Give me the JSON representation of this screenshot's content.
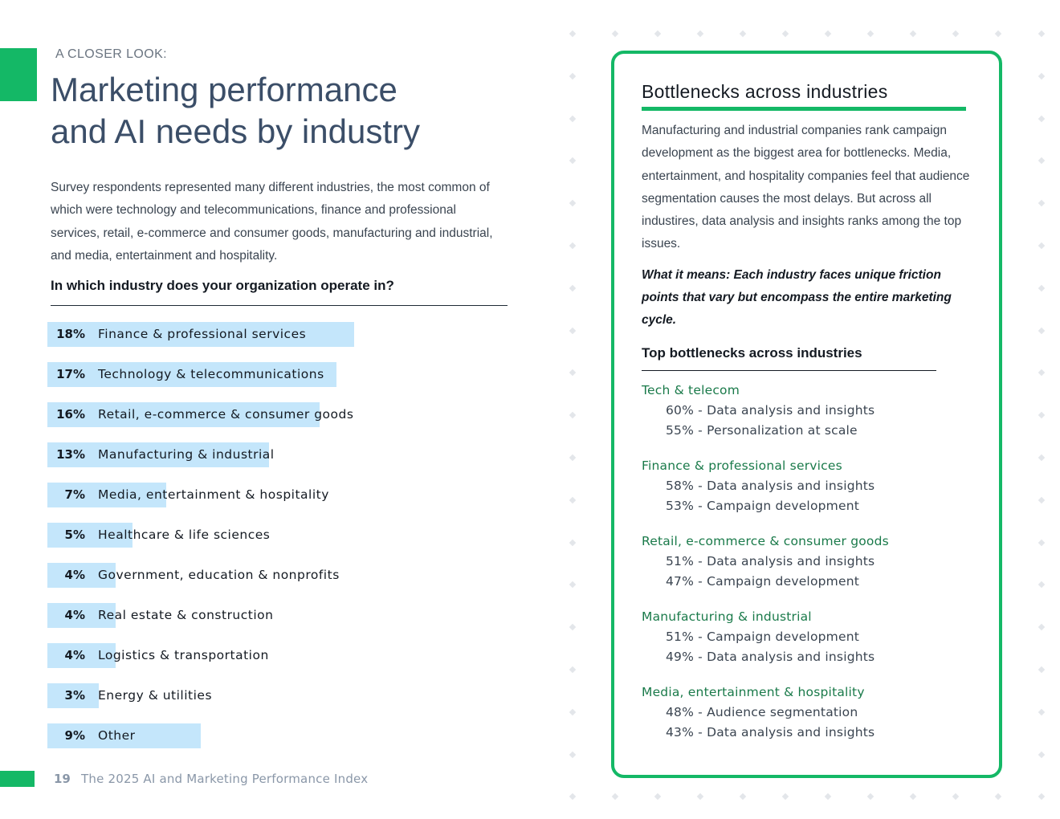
{
  "header": {
    "kicker": "A CLOSER LOOK:",
    "title_line1": "Marketing performance",
    "title_line2": "and AI needs by industry"
  },
  "intro": "Survey respondents represented many different industries, the most common of which were technology and telecommunications, finance and professional services, retail, e-commerce and consumer goods, manufacturing and industrial, and media, entertainment and hospitality.",
  "question": "In which industry does your organization operate in?",
  "chart_data": {
    "type": "bar",
    "title": "In which industry does your organization operate in?",
    "categories": [
      "Finance & professional services",
      "Technology & telecommunications",
      "Retail, e-commerce & consumer goods",
      "Manufacturing & industrial",
      "Media, entertainment & hospitality",
      "Healthcare & life sciences",
      "Government, education & nonprofits",
      "Real estate & construction",
      "Logistics & transportation",
      "Energy & utilities",
      "Other"
    ],
    "values": [
      18,
      17,
      16,
      13,
      7,
      5,
      4,
      4,
      4,
      3,
      9
    ],
    "value_labels": [
      "18%",
      "17%",
      "16%",
      "13%",
      "7%",
      "5%",
      "4%",
      "4%",
      "4%",
      "3%",
      "9%"
    ],
    "orientation": "horizontal",
    "bar_color": "#c4e6fb"
  },
  "footer": {
    "page_number": "19",
    "title": "The 2025 AI and Marketing Performance Index"
  },
  "panel": {
    "title": "Bottlenecks across industries",
    "body": "Manufacturing and industrial companies rank campaign development as the biggest area for bottlenecks. Media, entertainment, and hospitality companies feel that audience segmentation causes the most delays. But across all industires, data analysis and insights ranks among the top issues.",
    "means": "What it means: Each industry faces unique friction points that vary but encompass the entire marketing cycle.",
    "top_heading": "Top bottlenecks across industries",
    "groups": [
      {
        "name": "Tech & telecom",
        "items": [
          "60% - Data analysis and insights",
          "55% - Personalization at scale"
        ]
      },
      {
        "name": "Finance & professional services",
        "items": [
          "58% - Data analysis and insights",
          "53% - Campaign development"
        ]
      },
      {
        "name": "Retail, e-commerce & consumer goods",
        "items": [
          "51% - Data analysis and insights",
          "47% - Campaign development"
        ]
      },
      {
        "name": "Manufacturing & industrial",
        "items": [
          "51% - Campaign development",
          "49% - Data analysis and insights"
        ]
      },
      {
        "name": "Media, entertainment & hospitality",
        "items": [
          "48% - Audience segmentation",
          "43% - Data analysis and insights"
        ]
      }
    ]
  },
  "colors": {
    "accent": "#14b866",
    "group_name": "#1a7a4a",
    "title": "#3b4e68",
    "footer_text": "#8a97a8"
  }
}
